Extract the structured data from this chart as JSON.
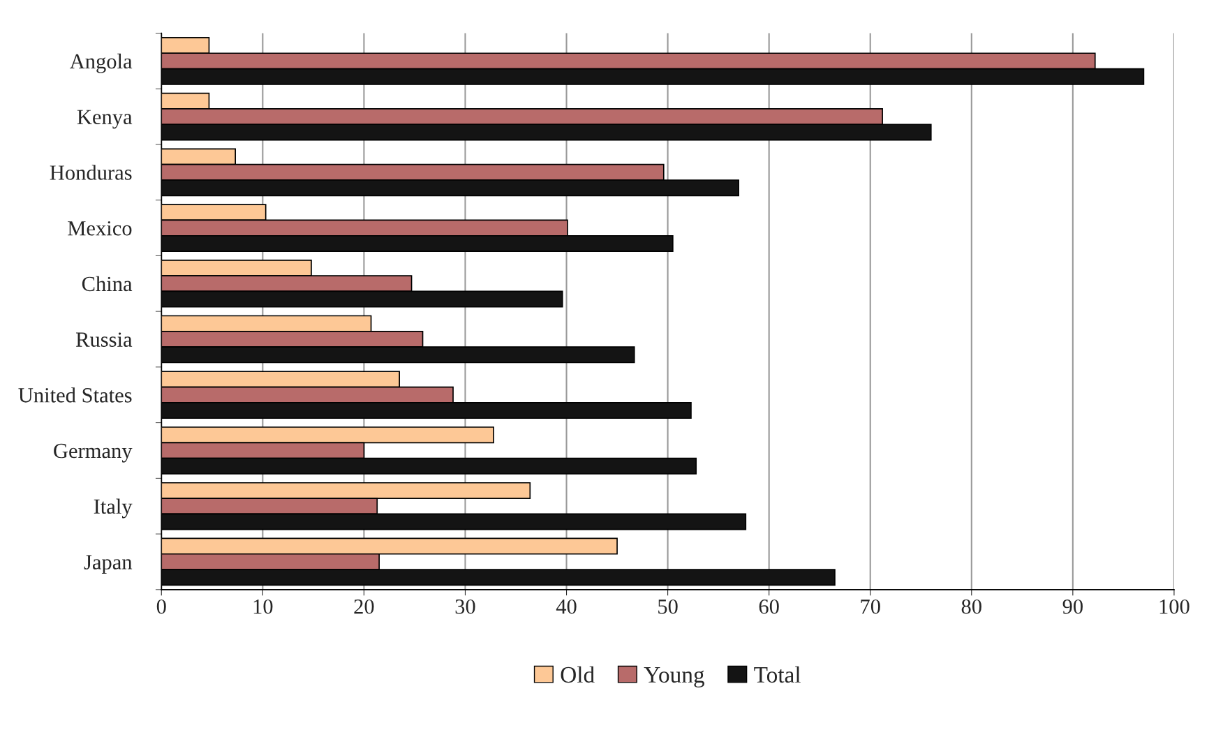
{
  "chart_data": {
    "type": "bar",
    "orientation": "horizontal",
    "categories": [
      "Angola",
      "Kenya",
      "Honduras",
      "Mexico",
      "China",
      "Russia",
      "United States",
      "Germany",
      "Italy",
      "Japan"
    ],
    "series": [
      {
        "name": "Old",
        "color": "#fdc896",
        "values": [
          4.7,
          4.7,
          7.3,
          10.3,
          14.8,
          20.7,
          23.5,
          32.8,
          36.4,
          45.0
        ]
      },
      {
        "name": "Young",
        "color": "#b86b6a",
        "values": [
          92.2,
          71.2,
          49.6,
          40.1,
          24.7,
          25.8,
          28.8,
          20.0,
          21.3,
          21.5
        ]
      },
      {
        "name": "Total",
        "color": "#141414",
        "values": [
          97.0,
          76.0,
          57.0,
          50.5,
          39.6,
          46.7,
          52.3,
          52.8,
          57.7,
          66.5
        ]
      }
    ],
    "xlim": [
      0,
      100
    ],
    "xticks": [
      0,
      10,
      20,
      30,
      40,
      50,
      60,
      70,
      80,
      90,
      100
    ],
    "grid": "x",
    "legend": "bottom"
  }
}
